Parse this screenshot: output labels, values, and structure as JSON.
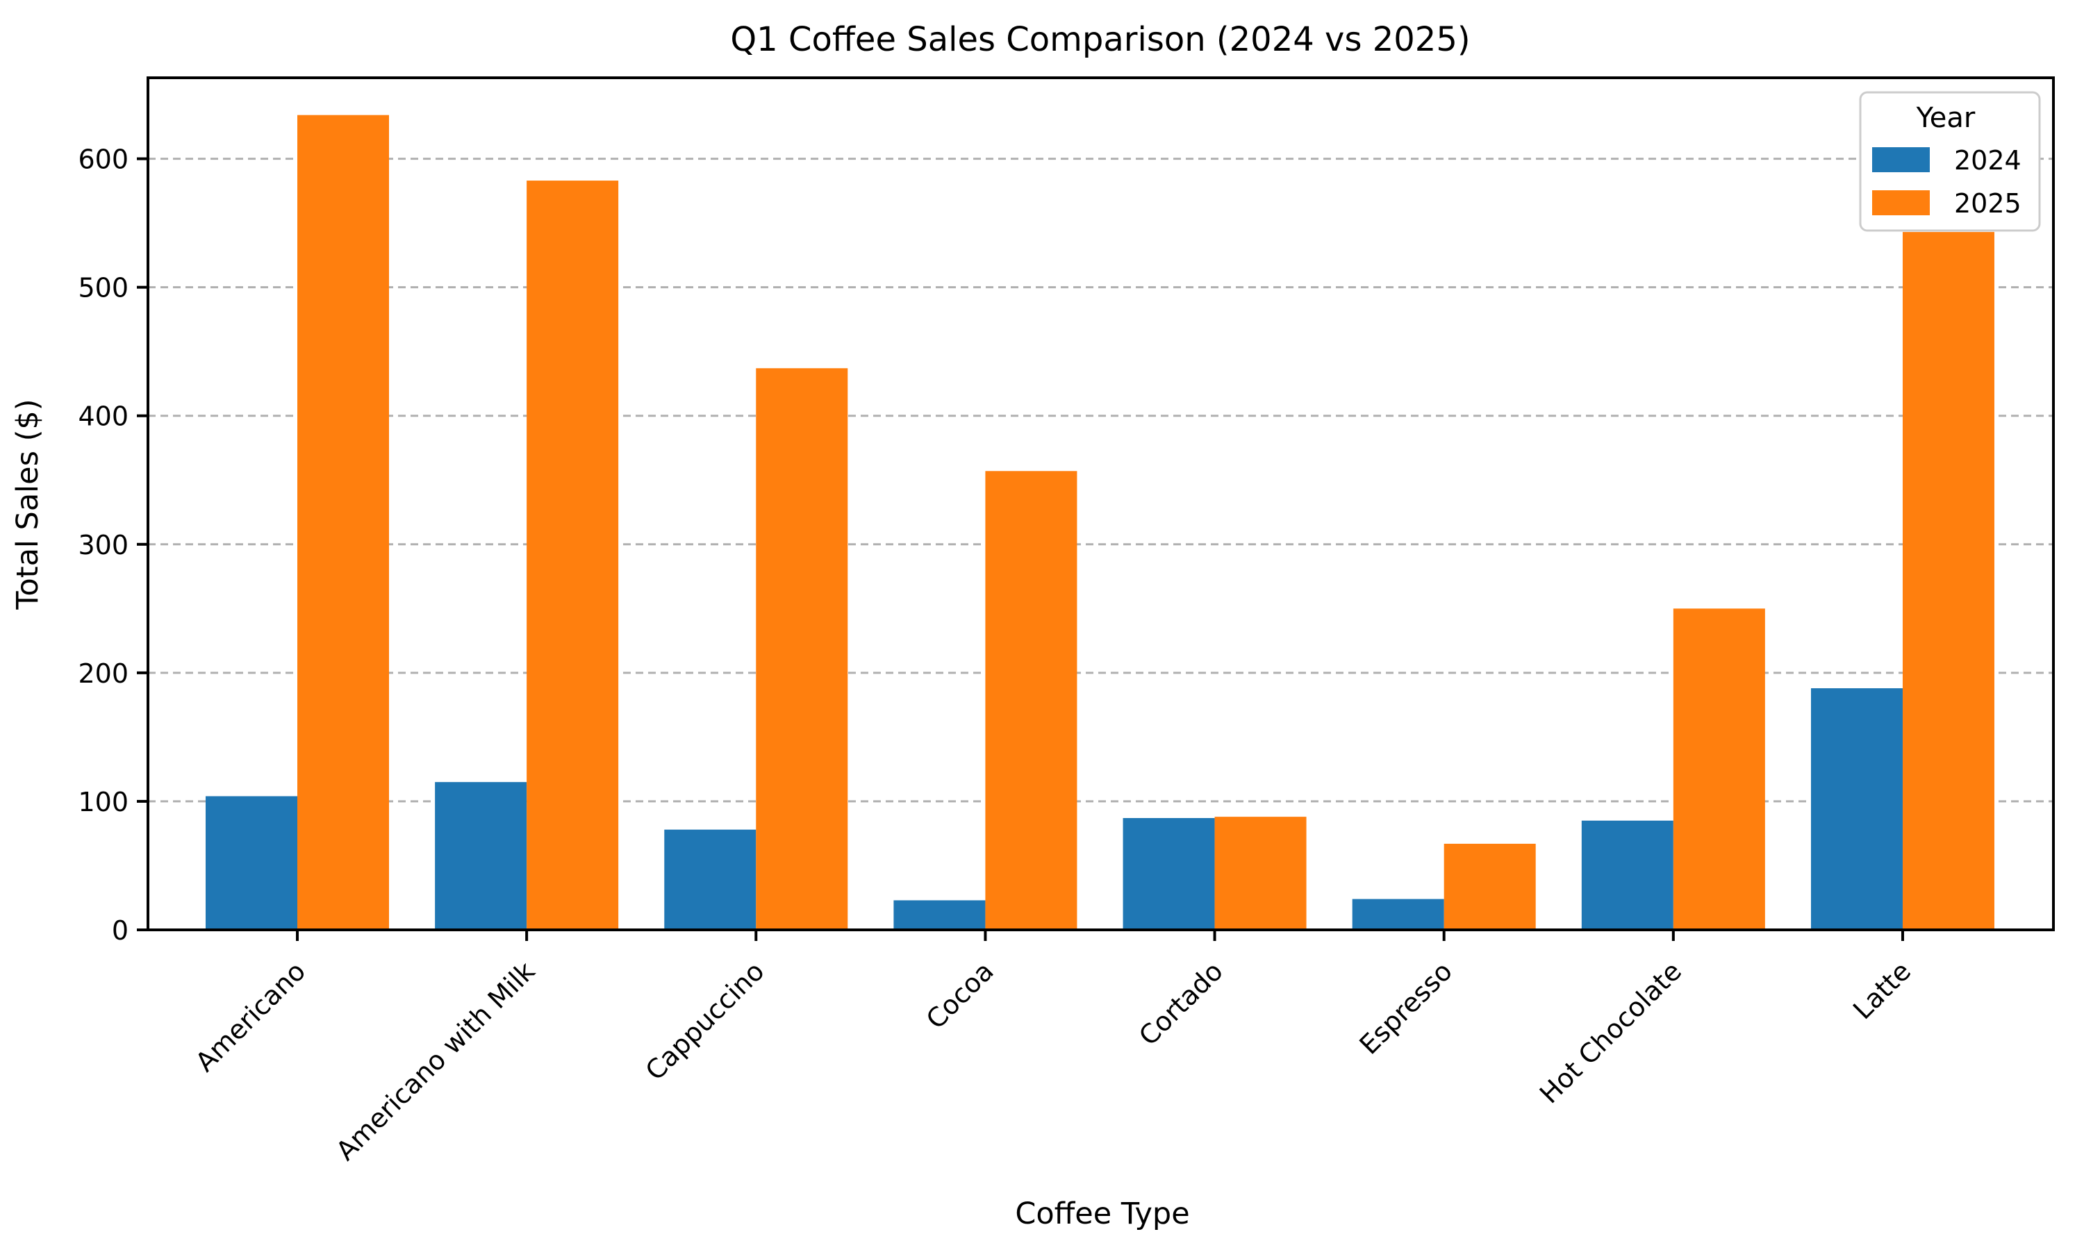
{
  "chart_data": {
    "type": "bar",
    "title": "Q1 Coffee Sales Comparison (2024 vs 2025)",
    "xlabel": "Coffee Type",
    "ylabel": "Total Sales ($)",
    "categories": [
      "Americano",
      "Americano with Milk",
      "Cappuccino",
      "Cocoa",
      "Cortado",
      "Espresso",
      "Hot Chocolate",
      "Latte"
    ],
    "series": [
      {
        "name": "2024",
        "color": "#1f77b4",
        "values": [
          104,
          115,
          78,
          23,
          87,
          24,
          85,
          188
        ]
      },
      {
        "name": "2025",
        "color": "#ff7f0e",
        "values": [
          634,
          583,
          437,
          357,
          88,
          67,
          250,
          543
        ]
      }
    ],
    "legend": {
      "title": "Year",
      "position": "upper right",
      "entries": [
        "2024",
        "2025"
      ]
    },
    "ylim": [
      0,
      663
    ],
    "yticks": [
      0,
      100,
      200,
      300,
      400,
      500,
      600
    ],
    "xtick_rotation": 45,
    "grid": {
      "axis": "y",
      "style": "dashed",
      "color": "#b0b0b0"
    },
    "colors": {
      "spine": "#000000",
      "text": "#000000",
      "background": "#ffffff",
      "legend_border": "#cccccc"
    }
  }
}
